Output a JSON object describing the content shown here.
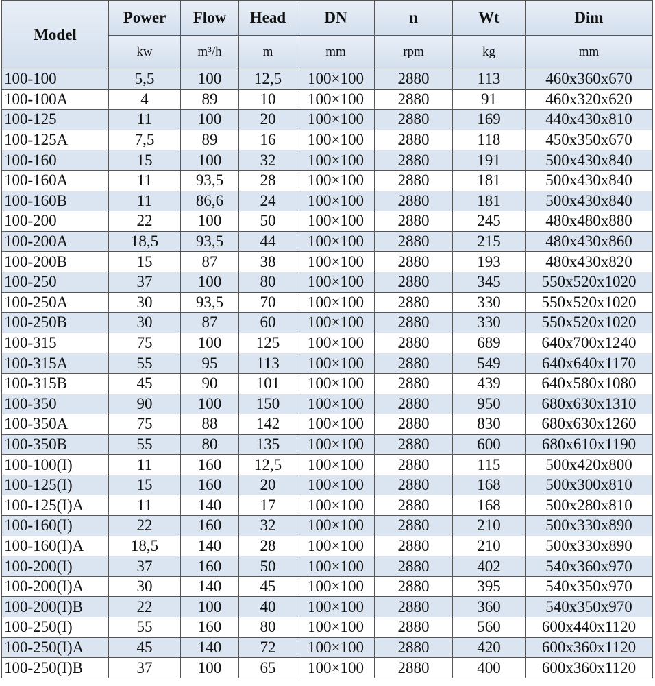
{
  "header": {
    "model": "Model",
    "columns": [
      {
        "name": "Power",
        "unit": "kw"
      },
      {
        "name": "Flow",
        "unit": "m³/h"
      },
      {
        "name": "Head",
        "unit": "m"
      },
      {
        "name": "DN",
        "unit": "mm"
      },
      {
        "name": "n",
        "unit": "rpm"
      },
      {
        "name": "Wt",
        "unit": "kg"
      },
      {
        "name": "Dim",
        "unit": "mm"
      }
    ]
  },
  "table": {
    "rows": [
      [
        "100-100",
        "5,5",
        "100",
        "12,5",
        "100×100",
        "2880",
        "113",
        "460x360x670"
      ],
      [
        "100-100A",
        "4",
        "89",
        "10",
        "100×100",
        "2880",
        "91",
        "460x320x620"
      ],
      [
        "100-125",
        "11",
        "100",
        "20",
        "100×100",
        "2880",
        "169",
        "440x430x810"
      ],
      [
        "100-125A",
        "7,5",
        "89",
        "16",
        "100×100",
        "2880",
        "118",
        "450x350x670"
      ],
      [
        "100-160",
        "15",
        "100",
        "32",
        "100×100",
        "2880",
        "191",
        "500x430x840"
      ],
      [
        "100-160A",
        "11",
        "93,5",
        "28",
        "100×100",
        "2880",
        "181",
        "500x430x840"
      ],
      [
        "100-160B",
        "11",
        "86,6",
        "24",
        "100×100",
        "2880",
        "181",
        "500x430x840"
      ],
      [
        "100-200",
        "22",
        "100",
        "50",
        "100×100",
        "2880",
        "245",
        "480x480x880"
      ],
      [
        "100-200A",
        "18,5",
        "93,5",
        "44",
        "100×100",
        "2880",
        "215",
        "480x430x860"
      ],
      [
        "100-200B",
        "15",
        "87",
        "38",
        "100×100",
        "2880",
        "193",
        "480x430x820"
      ],
      [
        "100-250",
        "37",
        "100",
        "80",
        "100×100",
        "2880",
        "345",
        "550x520x1020"
      ],
      [
        "100-250A",
        "30",
        "93,5",
        "70",
        "100×100",
        "2880",
        "330",
        "550x520x1020"
      ],
      [
        "100-250B",
        "30",
        "87",
        "60",
        "100×100",
        "2880",
        "330",
        "550x520x1020"
      ],
      [
        "100-315",
        "75",
        "100",
        "125",
        "100×100",
        "2880",
        "689",
        "640x700x1240"
      ],
      [
        "100-315A",
        "55",
        "95",
        "113",
        "100×100",
        "2880",
        "549",
        "640x640x1170"
      ],
      [
        "100-315B",
        "45",
        "90",
        "101",
        "100×100",
        "2880",
        "439",
        "640x580x1080"
      ],
      [
        "100-350",
        "90",
        "100",
        "150",
        "100×100",
        "2880",
        "950",
        "680x630x1310"
      ],
      [
        "100-350A",
        "75",
        "88",
        "142",
        "100×100",
        "2880",
        "830",
        "680x630x1260"
      ],
      [
        "100-350B",
        "55",
        "80",
        "135",
        "100×100",
        "2880",
        "600",
        "680x610x1190"
      ],
      [
        "100-100(I)",
        "11",
        "160",
        "12,5",
        "100×100",
        "2880",
        "115",
        "500x420x800"
      ],
      [
        "100-125(I)",
        "15",
        "160",
        "20",
        "100×100",
        "2880",
        "168",
        "500x300x810"
      ],
      [
        "100-125(I)A",
        "11",
        "140",
        "17",
        "100×100",
        "2880",
        "168",
        "500x280x810"
      ],
      [
        "100-160(I)",
        "22",
        "160",
        "32",
        "100×100",
        "2880",
        "210",
        "500x330x890"
      ],
      [
        "100-160(I)A",
        "18,5",
        "140",
        "28",
        "100×100",
        "2880",
        "210",
        "500x330x890"
      ],
      [
        "100-200(I)",
        "37",
        "160",
        "50",
        "100×100",
        "2880",
        "402",
        "540x360x970"
      ],
      [
        "100-200(I)A",
        "30",
        "140",
        "45",
        "100×100",
        "2880",
        "395",
        "540x350x970"
      ],
      [
        "100-200(I)B",
        "22",
        "100",
        "40",
        "100×100",
        "2880",
        "360",
        "540x350x970"
      ],
      [
        "100-250(I)",
        "55",
        "160",
        "80",
        "100×100",
        "2880",
        "560",
        "600x440x1120"
      ],
      [
        "100-250(I)A",
        "45",
        "140",
        "72",
        "100×100",
        "2880",
        "420",
        "600x360x1120"
      ],
      [
        "100-250(I)B",
        "37",
        "100",
        "65",
        "100×100",
        "2880",
        "400",
        "600x360x1120"
      ]
    ]
  }
}
